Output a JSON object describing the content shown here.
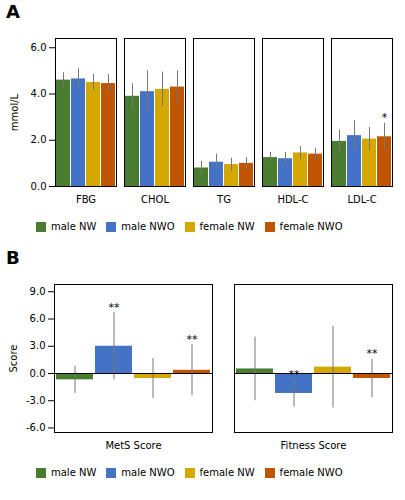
{
  "chart_data": [
    {
      "type": "bar",
      "title": "A",
      "categories": [
        "FBG",
        "CHOL",
        "TG",
        "HDL-C",
        "LDL-C"
      ],
      "series": [
        {
          "name": "male NW",
          "color": "#4a7c2f",
          "values": [
            4.6,
            3.9,
            0.8,
            1.25,
            1.95
          ],
          "errors": [
            0.32,
            0.55,
            0.28,
            0.22,
            0.5
          ],
          "significance": [
            null,
            null,
            null,
            null,
            null
          ]
        },
        {
          "name": "male NWO",
          "color": "#4472c4",
          "values": [
            4.65,
            4.1,
            1.05,
            1.2,
            2.2
          ],
          "errors": [
            0.45,
            0.9,
            0.35,
            0.27,
            0.65
          ],
          "significance": [
            null,
            null,
            null,
            null,
            null
          ]
        },
        {
          "name": "female NW",
          "color": "#d4a800",
          "values": [
            4.5,
            4.2,
            0.95,
            1.45,
            2.05
          ],
          "errors": [
            0.35,
            0.75,
            0.27,
            0.28,
            0.5
          ],
          "significance": [
            null,
            null,
            null,
            null,
            null
          ]
        },
        {
          "name": "female NWO",
          "color": "#c05500",
          "values": [
            4.45,
            4.3,
            1.0,
            1.4,
            2.15
          ],
          "errors": [
            0.4,
            0.7,
            0.25,
            0.25,
            0.58
          ],
          "significance": [
            null,
            null,
            null,
            null,
            "*"
          ]
        }
      ],
      "ylabel": "mmol/L",
      "ylim": [
        0,
        6.4
      ],
      "yticks": [
        {
          "value": 0,
          "label": "0.0"
        },
        {
          "value": 2,
          "label": "2.0"
        },
        {
          "value": 4,
          "label": "4.0"
        },
        {
          "value": 6,
          "label": "6.0"
        }
      ],
      "legend": "bottom",
      "grid": false
    },
    {
      "type": "bar",
      "title": "B",
      "categories": [
        "MetS Score",
        "Fitness Score"
      ],
      "series": [
        {
          "name": "male NW",
          "color": "#4a7c2f",
          "values": [
            -0.7,
            0.5
          ],
          "errors": [
            1.5,
            3.5
          ],
          "significance": [
            null,
            null
          ]
        },
        {
          "name": "male NWO",
          "color": "#4472c4",
          "values": [
            3.0,
            -2.2
          ],
          "errors": [
            3.7,
            1.5
          ],
          "significance": [
            "**",
            "**"
          ]
        },
        {
          "name": "female NW",
          "color": "#d4a800",
          "values": [
            -0.55,
            0.7
          ],
          "errors": [
            2.2,
            4.5
          ],
          "significance": [
            null,
            null
          ]
        },
        {
          "name": "female NWO",
          "color": "#c05500",
          "values": [
            0.35,
            -0.55
          ],
          "errors": [
            2.8,
            2.1
          ],
          "significance": [
            "**",
            "**"
          ]
        }
      ],
      "ylabel": "Score",
      "ylim": [
        -6.5,
        9.8
      ],
      "yticks": [
        {
          "value": -6,
          "label": "-6.0"
        },
        {
          "value": -3,
          "label": "-3.0"
        },
        {
          "value": 0,
          "label": "0.0"
        },
        {
          "value": 3,
          "label": "3.0"
        },
        {
          "value": 6,
          "label": "6.0"
        },
        {
          "value": 9,
          "label": "9.0"
        }
      ],
      "legend": "bottom",
      "grid": false
    }
  ]
}
